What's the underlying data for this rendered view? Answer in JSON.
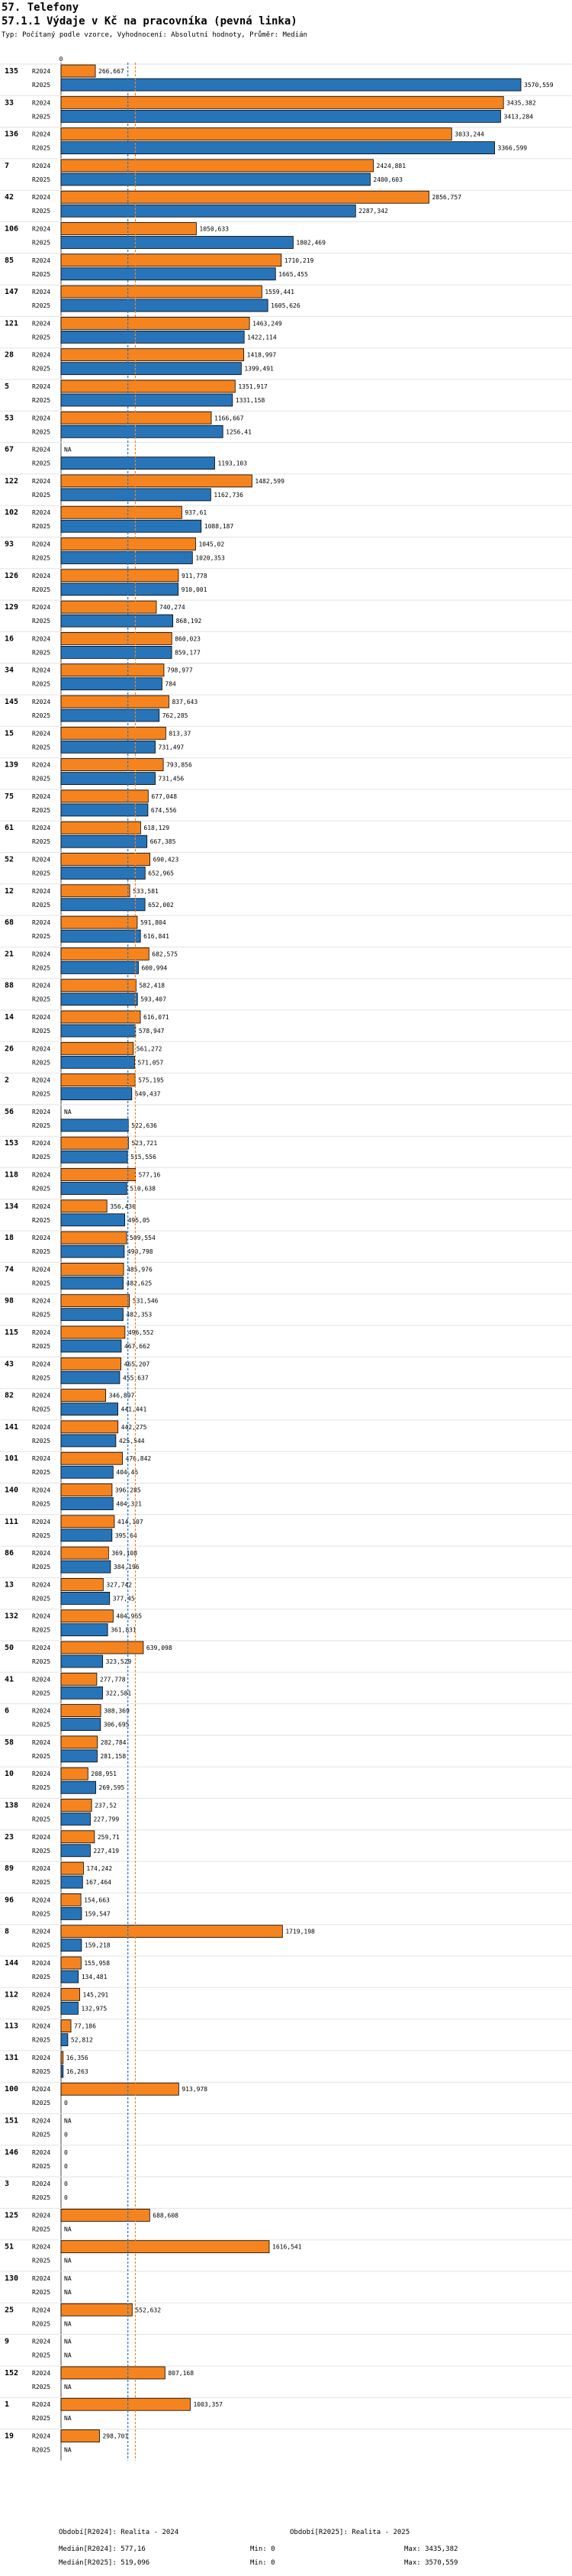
{
  "header": {
    "title": "57. Telefony",
    "chart_title": "57.1.1 Výdaje v Kč na pracovníka (pevná linka)",
    "subtitle": "Typ: Počítaný podle vzorce, Vyhodnocení: Absolutní hodnoty, Průměr: Medián"
  },
  "colors": {
    "r2024": "#f5841f",
    "r2025": "#2874b8",
    "median2024": "#f5841f",
    "median2025": "#2874b8"
  },
  "chart_data": {
    "type": "bar",
    "orientation": "horizontal",
    "title": "57.1.1 Výdaje v Kč na pracovníka (pevná linka)",
    "x_tick": "0",
    "xlim": [
      0,
      3570.559
    ],
    "series_names": [
      "R2024",
      "R2025"
    ],
    "missing_label": "NA",
    "medians": {
      "R2024": 577.16,
      "R2025": 519.096
    },
    "groups": [
      {
        "id": "135",
        "values": [
          266.667,
          3570.559
        ],
        "labels": [
          "266,667",
          "3570,559"
        ]
      },
      {
        "id": "33",
        "values": [
          3435.382,
          3413.284
        ],
        "labels": [
          "3435,382",
          "3413,284"
        ]
      },
      {
        "id": "136",
        "values": [
          3033.244,
          3366.599
        ],
        "labels": [
          "3033,244",
          "3366,599"
        ]
      },
      {
        "id": "7",
        "values": [
          2424.881,
          2400.603
        ],
        "labels": [
          "2424,881",
          "2400,603"
        ]
      },
      {
        "id": "42",
        "values": [
          2856.757,
          2287.342
        ],
        "labels": [
          "2856,757",
          "2287,342"
        ]
      },
      {
        "id": "106",
        "values": [
          1050.633,
          1802.469
        ],
        "labels": [
          "1050,633",
          "1802,469"
        ]
      },
      {
        "id": "85",
        "values": [
          1710.219,
          1665.455
        ],
        "labels": [
          "1710,219",
          "1665,455"
        ]
      },
      {
        "id": "147",
        "values": [
          1559.441,
          1605.626
        ],
        "labels": [
          "1559,441",
          "1605,626"
        ]
      },
      {
        "id": "121",
        "values": [
          1463.249,
          1422.114
        ],
        "labels": [
          "1463,249",
          "1422,114"
        ]
      },
      {
        "id": "28",
        "values": [
          1418.997,
          1399.491
        ],
        "labels": [
          "1418,997",
          "1399,491"
        ]
      },
      {
        "id": "5",
        "values": [
          1351.917,
          1331.158
        ],
        "labels": [
          "1351,917",
          "1331,158"
        ]
      },
      {
        "id": "53",
        "values": [
          1166.667,
          1256.41
        ],
        "labels": [
          "1166,667",
          "1256,41"
        ]
      },
      {
        "id": "67",
        "values": [
          null,
          1193.103
        ],
        "labels": [
          "NA",
          "1193,103"
        ]
      },
      {
        "id": "122",
        "values": [
          1482.599,
          1162.736
        ],
        "labels": [
          "1482,599",
          "1162,736"
        ]
      },
      {
        "id": "102",
        "values": [
          937.61,
          1088.187
        ],
        "labels": [
          "937,61",
          "1088,187"
        ]
      },
      {
        "id": "93",
        "values": [
          1045.02,
          1020.353
        ],
        "labels": [
          "1045,02",
          "1020,353"
        ]
      },
      {
        "id": "126",
        "values": [
          911.778,
          910.001
        ],
        "labels": [
          "911,778",
          "910,001"
        ]
      },
      {
        "id": "129",
        "values": [
          740.274,
          868.192
        ],
        "labels": [
          "740,274",
          "868,192"
        ]
      },
      {
        "id": "16",
        "values": [
          860.023,
          859.177
        ],
        "labels": [
          "860,023",
          "859,177"
        ]
      },
      {
        "id": "34",
        "values": [
          798.977,
          784
        ],
        "labels": [
          "798,977",
          "784"
        ]
      },
      {
        "id": "145",
        "values": [
          837.643,
          762.285
        ],
        "labels": [
          "837,643",
          "762,285"
        ]
      },
      {
        "id": "15",
        "values": [
          813.37,
          731.497
        ],
        "labels": [
          "813,37",
          "731,497"
        ]
      },
      {
        "id": "139",
        "values": [
          793.856,
          731.456
        ],
        "labels": [
          "793,856",
          "731,456"
        ]
      },
      {
        "id": "75",
        "values": [
          677.048,
          674.556
        ],
        "labels": [
          "677,048",
          "674,556"
        ]
      },
      {
        "id": "61",
        "values": [
          618.129,
          667.385
        ],
        "labels": [
          "618,129",
          "667,385"
        ]
      },
      {
        "id": "52",
        "values": [
          690.423,
          652.965
        ],
        "labels": [
          "690,423",
          "652,965"
        ]
      },
      {
        "id": "12",
        "values": [
          533.581,
          652.002
        ],
        "labels": [
          "533,581",
          "652,002"
        ]
      },
      {
        "id": "68",
        "values": [
          591.804,
          616.841
        ],
        "labels": [
          "591,804",
          "616,841"
        ]
      },
      {
        "id": "21",
        "values": [
          682.575,
          600.994
        ],
        "labels": [
          "682,575",
          "600,994"
        ]
      },
      {
        "id": "88",
        "values": [
          582.418,
          593.407
        ],
        "labels": [
          "582,418",
          "593,407"
        ]
      },
      {
        "id": "14",
        "values": [
          616.071,
          578.947
        ],
        "labels": [
          "616,071",
          "578,947"
        ]
      },
      {
        "id": "26",
        "values": [
          561.272,
          571.057
        ],
        "labels": [
          "561,272",
          "571,057"
        ]
      },
      {
        "id": "2",
        "values": [
          575.195,
          549.437
        ],
        "labels": [
          "575,195",
          "549,437"
        ]
      },
      {
        "id": "56",
        "values": [
          null,
          522.636
        ],
        "labels": [
          "NA",
          "522,636"
        ]
      },
      {
        "id": "153",
        "values": [
          523.721,
          515.556
        ],
        "labels": [
          "523,721",
          "515,556"
        ]
      },
      {
        "id": "118",
        "values": [
          577.16,
          510.638
        ],
        "labels": [
          "577,16",
          "510,638"
        ]
      },
      {
        "id": "134",
        "values": [
          356.436,
          495.05
        ],
        "labels": [
          "356,436",
          "495,05"
        ]
      },
      {
        "id": "18",
        "values": [
          509.554,
          490.798
        ],
        "labels": [
          "509,554",
          "490,798"
        ]
      },
      {
        "id": "74",
        "values": [
          485.976,
          482.625
        ],
        "labels": [
          "485,976",
          "482,625"
        ]
      },
      {
        "id": "98",
        "values": [
          531.546,
          482.353
        ],
        "labels": [
          "531,546",
          "482,353"
        ]
      },
      {
        "id": "115",
        "values": [
          496.552,
          467.662
        ],
        "labels": [
          "496,552",
          "467,662"
        ]
      },
      {
        "id": "43",
        "values": [
          465.207,
          455.637
        ],
        "labels": [
          "465,207",
          "455,637"
        ]
      },
      {
        "id": "82",
        "values": [
          346.897,
          441.441
        ],
        "labels": [
          "346,897",
          "441,441"
        ]
      },
      {
        "id": "141",
        "values": [
          442.275,
          425.544
        ],
        "labels": [
          "442,275",
          "425,544"
        ]
      },
      {
        "id": "101",
        "values": [
          476.842,
          404.46
        ],
        "labels": [
          "476,842",
          "404,46"
        ]
      },
      {
        "id": "140",
        "values": [
          396.285,
          404.321
        ],
        "labels": [
          "396,285",
          "404,321"
        ]
      },
      {
        "id": "111",
        "values": [
          414.107,
          395.64
        ],
        "labels": [
          "414,107",
          "395,64"
        ]
      },
      {
        "id": "86",
        "values": [
          369.108,
          384.196
        ],
        "labels": [
          "369,108",
          "384,196"
        ]
      },
      {
        "id": "13",
        "values": [
          327.742,
          377.45
        ],
        "labels": [
          "327,742",
          "377,45"
        ]
      },
      {
        "id": "132",
        "values": [
          404.965,
          361.831
        ],
        "labels": [
          "404,965",
          "361,831"
        ]
      },
      {
        "id": "50",
        "values": [
          639.098,
          323.529
        ],
        "labels": [
          "639,098",
          "323,529"
        ]
      },
      {
        "id": "41",
        "values": [
          277.778,
          322.581
        ],
        "labels": [
          "277,778",
          "322,581"
        ]
      },
      {
        "id": "6",
        "values": [
          308.369,
          306.695
        ],
        "labels": [
          "308,369",
          "306,695"
        ]
      },
      {
        "id": "58",
        "values": [
          282.784,
          281.158
        ],
        "labels": [
          "282,784",
          "281,158"
        ]
      },
      {
        "id": "10",
        "values": [
          208.951,
          269.595
        ],
        "labels": [
          "208,951",
          "269,595"
        ]
      },
      {
        "id": "138",
        "values": [
          237.52,
          227.799
        ],
        "labels": [
          "237,52",
          "227,799"
        ]
      },
      {
        "id": "23",
        "values": [
          259.71,
          227.419
        ],
        "labels": [
          "259,71",
          "227,419"
        ]
      },
      {
        "id": "89",
        "values": [
          174.242,
          167.464
        ],
        "labels": [
          "174,242",
          "167,464"
        ]
      },
      {
        "id": "96",
        "values": [
          154.663,
          159.547
        ],
        "labels": [
          "154,663",
          "159,547"
        ]
      },
      {
        "id": "8",
        "values": [
          1719.198,
          159.218
        ],
        "labels": [
          "1719,198",
          "159,218"
        ]
      },
      {
        "id": "144",
        "values": [
          155.958,
          134.481
        ],
        "labels": [
          "155,958",
          "134,481"
        ]
      },
      {
        "id": "112",
        "values": [
          145.291,
          132.975
        ],
        "labels": [
          "145,291",
          "132,975"
        ]
      },
      {
        "id": "113",
        "values": [
          77.186,
          52.812
        ],
        "labels": [
          "77,186",
          "52,812"
        ]
      },
      {
        "id": "131",
        "values": [
          16.356,
          16.263
        ],
        "labels": [
          "16,356",
          "16,263"
        ]
      },
      {
        "id": "100",
        "values": [
          913.978,
          0
        ],
        "labels": [
          "913,978",
          "0"
        ]
      },
      {
        "id": "151",
        "values": [
          null,
          0
        ],
        "labels": [
          "NA",
          "0"
        ]
      },
      {
        "id": "146",
        "values": [
          0,
          0
        ],
        "labels": [
          "0",
          "0"
        ]
      },
      {
        "id": "3",
        "values": [
          0,
          0
        ],
        "labels": [
          "0",
          "0"
        ]
      },
      {
        "id": "125",
        "values": [
          688.608,
          null
        ],
        "labels": [
          "688,608",
          "NA"
        ]
      },
      {
        "id": "51",
        "values": [
          1616.541,
          null
        ],
        "labels": [
          "1616,541",
          "NA"
        ]
      },
      {
        "id": "130",
        "values": [
          null,
          null
        ],
        "labels": [
          "NA",
          "NA"
        ]
      },
      {
        "id": "25",
        "values": [
          552.632,
          null
        ],
        "labels": [
          "552,632",
          "NA"
        ]
      },
      {
        "id": "9",
        "values": [
          null,
          null
        ],
        "labels": [
          "NA",
          "NA"
        ]
      },
      {
        "id": "152",
        "values": [
          807.168,
          null
        ],
        "labels": [
          "807,168",
          "NA"
        ]
      },
      {
        "id": "1",
        "values": [
          1003.357,
          null
        ],
        "labels": [
          "1003,357",
          "NA"
        ]
      },
      {
        "id": "19",
        "values": [
          298.701,
          null
        ],
        "labels": [
          "298,701",
          "NA"
        ]
      }
    ]
  },
  "footer": {
    "obdobi2024": "Období[R2024]: Realita - 2024",
    "obdobi2025": "Období[R2025]: Realita - 2025",
    "median2024": "Medián[R2024]: 577,16",
    "median2025": "Medián[R2025]: 519,096",
    "min2024": "Min: 0",
    "min2025": "Min: 0",
    "max2024": "Max: 3435,382",
    "max2025": "Max: 3570,559"
  }
}
